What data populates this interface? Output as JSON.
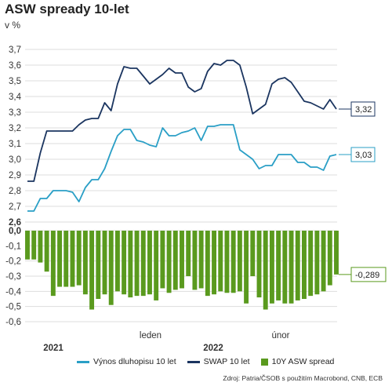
{
  "title": "ASW spready 10-let",
  "unit": "v %",
  "source": "Zdroj: Patria/ČSOB s použitím Macrobond, CNB, ECB",
  "colors": {
    "yield": "#2a9fc6",
    "swap": "#1b3560",
    "spread": "#5a9a1e",
    "grid": "#dddddd"
  },
  "chart_data": {
    "type": "line",
    "title": "ASW spready 10-let",
    "ylabel": "v %",
    "ylim": [
      -0.6,
      3.7
    ],
    "yticks": [
      "3,7",
      "3,6",
      "3,5",
      "3,4",
      "3,3",
      "3,2",
      "3,1",
      "3,0",
      "2,9",
      "2,8",
      "2,7",
      "2,6",
      "0,0",
      "-0,1",
      "-0,2",
      "-0,3",
      "-0,4",
      "-0,5",
      "-0,6"
    ],
    "xlabels": [
      "2021",
      "leden",
      "2022",
      "únor"
    ],
    "series": [
      {
        "name": "Výnos dluhopisu 10 let",
        "type": "line",
        "end_label": "3,03",
        "values": [
          2.67,
          2.67,
          2.75,
          2.75,
          2.8,
          2.8,
          2.8,
          2.79,
          2.73,
          2.82,
          2.87,
          2.87,
          2.94,
          3.05,
          3.15,
          3.19,
          3.19,
          3.12,
          3.11,
          3.09,
          3.08,
          3.2,
          3.15,
          3.15,
          3.17,
          3.18,
          3.2,
          3.12,
          3.21,
          3.21,
          3.22,
          3.22,
          3.22,
          3.06,
          3.03,
          3.0,
          2.94,
          2.96,
          2.96,
          3.03,
          3.03,
          3.03,
          2.98,
          2.98,
          2.95,
          2.95,
          2.93,
          3.02,
          3.03
        ]
      },
      {
        "name": "SWAP 10 let",
        "type": "line",
        "end_label": "3,32",
        "values": [
          2.86,
          2.86,
          3.04,
          3.18,
          3.18,
          3.18,
          3.18,
          3.18,
          3.22,
          3.25,
          3.26,
          3.26,
          3.36,
          3.31,
          3.48,
          3.59,
          3.58,
          3.58,
          3.53,
          3.48,
          3.51,
          3.54,
          3.58,
          3.55,
          3.55,
          3.46,
          3.43,
          3.45,
          3.56,
          3.61,
          3.6,
          3.63,
          3.63,
          3.6,
          3.46,
          3.29,
          3.32,
          3.35,
          3.48,
          3.51,
          3.52,
          3.49,
          3.43,
          3.37,
          3.36,
          3.34,
          3.32,
          3.38,
          3.32
        ]
      },
      {
        "name": "10Y ASW spread",
        "type": "bar",
        "end_label": "-0,289",
        "values": [
          -0.19,
          -0.19,
          -0.21,
          -0.27,
          -0.43,
          -0.37,
          -0.37,
          -0.37,
          -0.36,
          -0.42,
          -0.52,
          -0.45,
          -0.42,
          -0.49,
          -0.4,
          -0.42,
          -0.44,
          -0.43,
          -0.43,
          -0.42,
          -0.46,
          -0.38,
          -0.41,
          -0.39,
          -0.38,
          -0.3,
          -0.39,
          -0.38,
          -0.43,
          -0.42,
          -0.4,
          -0.41,
          -0.41,
          -0.4,
          -0.48,
          -0.3,
          -0.44,
          -0.52,
          -0.48,
          -0.46,
          -0.48,
          -0.48,
          -0.46,
          -0.45,
          -0.43,
          -0.42,
          -0.4,
          -0.36,
          -0.289
        ]
      }
    ]
  }
}
